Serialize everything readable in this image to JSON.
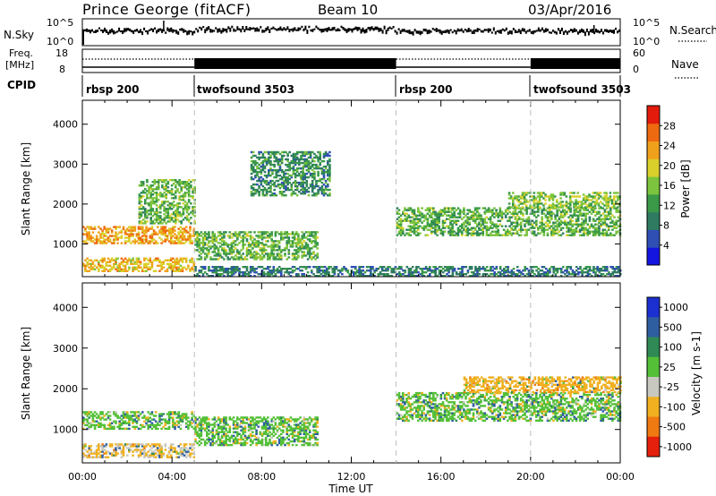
{
  "header": {
    "station": "Prince George (fitACF)",
    "beam": "Beam 10",
    "date": "03/Apr/2016"
  },
  "noise_panel": {
    "left_label": "N.Sky",
    "right_label": "N.Search",
    "left_ticks": [
      "10^5",
      "10^0"
    ],
    "right_ticks": [
      "10^5",
      "10^0"
    ]
  },
  "freq_panel": {
    "left_label_1": "Freq.",
    "left_label_2": "[MHz]",
    "right_label": "Nave",
    "left_ticks": [
      "18",
      "8"
    ],
    "right_ticks": [
      "60",
      "0"
    ]
  },
  "cpid": {
    "label": "CPID",
    "segments": [
      {
        "start_hr": 0,
        "name": "rbsp 200"
      },
      {
        "start_hr": 5,
        "name": "twofsound 3503"
      },
      {
        "start_hr": 14,
        "name": "rbsp 200"
      },
      {
        "start_hr": 20,
        "name": "twofsound 3503"
      }
    ]
  },
  "axes": {
    "ylabel": "Slant Range [km]",
    "xlabel": "Time UT",
    "yticks": [
      "1000",
      "2000",
      "3000",
      "4000"
    ],
    "xticks": [
      "00:00",
      "04:00",
      "08:00",
      "12:00",
      "16:00",
      "20:00",
      "00:00"
    ]
  },
  "power_colorbar": {
    "label": "Power [dB]",
    "ticks": [
      "4",
      "8",
      "12",
      "16",
      "20",
      "24",
      "28"
    ],
    "colors": [
      "#1515e0",
      "#2f4fb5",
      "#2e7b62",
      "#3a9a48",
      "#7cc43d",
      "#d9d02b",
      "#f0a11b",
      "#ee6a10",
      "#e21b0c"
    ]
  },
  "velocity_colorbar": {
    "label": "Velocity [m s-1]",
    "ticks": [
      "1000",
      "500",
      "100",
      "25",
      "-25",
      "-100",
      "-500",
      "-1000"
    ],
    "colors": [
      "#1c2fd0",
      "#2e5ea0",
      "#2f8a55",
      "#54c038",
      "#c8c8c0",
      "#f0b020",
      "#f07a12",
      "#e5200c"
    ]
  },
  "chart_data": [
    {
      "type": "heatmap",
      "title": "",
      "xlabel": "Time UT",
      "ylabel": "Slant Range [km]",
      "xlim": [
        0,
        24
      ],
      "ylim": [
        180,
        4600
      ],
      "colorbar_label": "Power [dB]",
      "colorbar_range": [
        0,
        32
      ],
      "scatter_bands": [
        {
          "t0": 0.0,
          "t1": 5.0,
          "r0": 1000,
          "r1": 1450,
          "value": 24
        },
        {
          "t0": 0.0,
          "t1": 5.0,
          "r0": 300,
          "r1": 650,
          "value": 22
        },
        {
          "t0": 2.5,
          "t1": 5.0,
          "r0": 1500,
          "r1": 2600,
          "value": 14
        },
        {
          "t0": 5.0,
          "t1": 10.5,
          "r0": 600,
          "r1": 1300,
          "value": 14
        },
        {
          "t0": 7.5,
          "t1": 11.0,
          "r0": 2200,
          "r1": 3300,
          "value": 10
        },
        {
          "t0": 14.0,
          "t1": 24.0,
          "r0": 1200,
          "r1": 1900,
          "value": 14
        },
        {
          "t0": 19.0,
          "t1": 24.0,
          "r0": 1900,
          "r1": 2300,
          "value": 16
        },
        {
          "t0": 5.0,
          "t1": 24.0,
          "r0": 180,
          "r1": 450,
          "value": 8
        }
      ]
    },
    {
      "type": "heatmap",
      "title": "",
      "xlabel": "Time UT",
      "ylabel": "Slant Range [km]",
      "xlim": [
        0,
        24
      ],
      "ylim": [
        180,
        4600
      ],
      "colorbar_label": "Velocity [m s-1]",
      "colorbar_range": [
        -1000,
        1000
      ],
      "scatter_bands": [
        {
          "t0": 0.0,
          "t1": 5.0,
          "r0": 1000,
          "r1": 1450,
          "value": 0
        },
        {
          "t0": 0.0,
          "t1": 5.0,
          "r0": 300,
          "r1": 650,
          "value": -100
        },
        {
          "t0": 5.0,
          "t1": 10.5,
          "r0": 600,
          "r1": 1300,
          "value": 0
        },
        {
          "t0": 14.0,
          "t1": 24.0,
          "r0": 1200,
          "r1": 1900,
          "value": 0
        },
        {
          "t0": 17.0,
          "t1": 24.0,
          "r0": 1900,
          "r1": 2300,
          "value": -300
        }
      ]
    }
  ]
}
